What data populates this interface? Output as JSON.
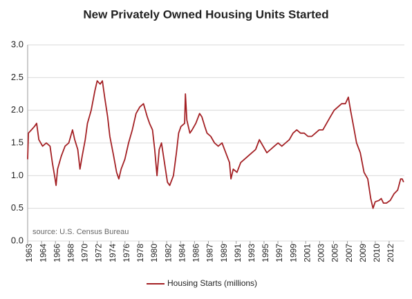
{
  "chart_data": {
    "type": "line",
    "title": "New Privately Owned Housing Units Started",
    "annotation": "source: U.S. Census Bureau",
    "x": [
      1963.0,
      1963.1,
      1963.5,
      1963.9,
      1964.2,
      1964.5,
      1965.0,
      1965.5,
      1966.0,
      1966.3,
      1966.6,
      1966.8,
      1967.0,
      1967.5,
      1968.0,
      1968.5,
      1969.0,
      1969.3,
      1969.7,
      1970.0,
      1970.3,
      1970.7,
      1971.0,
      1971.5,
      1972.0,
      1972.3,
      1972.7,
      1973.0,
      1973.3,
      1973.7,
      1974.0,
      1974.5,
      1974.9,
      1975.2,
      1975.5,
      1976.0,
      1976.5,
      1977.0,
      1977.5,
      1978.0,
      1978.5,
      1979.0,
      1979.3,
      1979.7,
      1980.0,
      1980.3,
      1980.6,
      1980.9,
      1981.3,
      1981.7,
      1982.0,
      1982.5,
      1982.9,
      1983.2,
      1983.5,
      1984.0,
      1984.1,
      1984.3,
      1984.7,
      1985.0,
      1985.5,
      1986.0,
      1986.3,
      1986.7,
      1987.0,
      1987.5,
      1988.0,
      1988.5,
      1989.0,
      1989.5,
      1990.0,
      1990.2,
      1990.5,
      1991.0,
      1991.5,
      1992.0,
      1992.5,
      1993.0,
      1993.5,
      1994.0,
      1994.5,
      1995.0,
      1995.5,
      1996.0,
      1996.5,
      1997.0,
      1997.5,
      1998.0,
      1998.5,
      1999.0,
      1999.5,
      2000.0,
      2000.5,
      2001.0,
      2001.5,
      2002.0,
      2002.5,
      2003.0,
      2003.5,
      2004.0,
      2004.5,
      2005.0,
      2005.5,
      2005.9,
      2006.2,
      2006.6,
      2007.0,
      2007.5,
      2008.0,
      2008.5,
      2008.9,
      2009.2,
      2009.5,
      2010.0,
      2010.3,
      2010.6,
      2011.0,
      2011.5,
      2012.0,
      2012.5,
      2012.9,
      2013.1,
      2013.3
    ],
    "series": [
      {
        "name": "Housing Starts (millions)",
        "color": "#a31f23",
        "values": [
          1.25,
          1.65,
          1.7,
          1.75,
          1.8,
          1.55,
          1.45,
          1.5,
          1.45,
          1.2,
          1.0,
          0.85,
          1.1,
          1.3,
          1.45,
          1.5,
          1.7,
          1.55,
          1.4,
          1.1,
          1.3,
          1.55,
          1.8,
          2.0,
          2.3,
          2.45,
          2.4,
          2.45,
          2.2,
          1.9,
          1.6,
          1.3,
          1.05,
          0.95,
          1.1,
          1.25,
          1.5,
          1.7,
          1.95,
          2.05,
          2.1,
          1.9,
          1.8,
          1.7,
          1.4,
          1.0,
          1.4,
          1.5,
          1.2,
          0.9,
          0.85,
          1.0,
          1.35,
          1.65,
          1.75,
          1.8,
          2.25,
          1.85,
          1.65,
          1.7,
          1.8,
          1.95,
          1.9,
          1.75,
          1.65,
          1.6,
          1.5,
          1.45,
          1.5,
          1.35,
          1.2,
          0.95,
          1.1,
          1.05,
          1.2,
          1.25,
          1.3,
          1.35,
          1.4,
          1.55,
          1.45,
          1.35,
          1.4,
          1.45,
          1.5,
          1.45,
          1.5,
          1.55,
          1.65,
          1.7,
          1.65,
          1.65,
          1.6,
          1.6,
          1.65,
          1.7,
          1.7,
          1.8,
          1.9,
          2.0,
          2.05,
          2.1,
          2.1,
          2.2,
          2.0,
          1.75,
          1.5,
          1.35,
          1.05,
          0.95,
          0.65,
          0.5,
          0.6,
          0.62,
          0.65,
          0.58,
          0.58,
          0.62,
          0.72,
          0.78,
          0.95,
          0.95,
          0.9
        ]
      }
    ],
    "xlim": [
      1963.0,
      2013.4
    ],
    "xticks": [
      {
        "value": 1963.0,
        "label": "1963"
      },
      {
        "value": 1964.86,
        "label": "1964"
      },
      {
        "value": 1966.72,
        "label": "1966"
      },
      {
        "value": 1968.58,
        "label": "1968"
      },
      {
        "value": 1970.44,
        "label": "1970"
      },
      {
        "value": 1972.3,
        "label": "1972"
      },
      {
        "value": 1974.16,
        "label": "1974"
      },
      {
        "value": 1976.02,
        "label": "1976"
      },
      {
        "value": 1977.88,
        "label": "1978"
      },
      {
        "value": 1979.74,
        "label": "1980"
      },
      {
        "value": 1981.6,
        "label": "1982"
      },
      {
        "value": 1983.46,
        "label": "1984"
      },
      {
        "value": 1985.32,
        "label": "1986"
      },
      {
        "value": 1987.18,
        "label": "1987"
      },
      {
        "value": 1989.04,
        "label": "1989"
      },
      {
        "value": 1990.9,
        "label": "1991"
      },
      {
        "value": 1992.76,
        "label": "1993"
      },
      {
        "value": 1994.62,
        "label": "1995"
      },
      {
        "value": 1996.48,
        "label": "1997"
      },
      {
        "value": 1998.34,
        "label": "1999"
      },
      {
        "value": 2000.2,
        "label": "2001"
      },
      {
        "value": 2002.06,
        "label": "2003"
      },
      {
        "value": 2003.92,
        "label": "2005"
      },
      {
        "value": 2005.78,
        "label": "2007"
      },
      {
        "value": 2007.64,
        "label": "2009"
      },
      {
        "value": 2009.5,
        "label": "2010"
      },
      {
        "value": 2011.36,
        "label": "2012"
      }
    ],
    "ylim": [
      0,
      3
    ],
    "yticks": [
      {
        "value": 0,
        "label": "0.0"
      },
      {
        "value": 0.5,
        "label": "0.5"
      },
      {
        "value": 1,
        "label": "1.0"
      },
      {
        "value": 1.5,
        "label": "1.5"
      },
      {
        "value": 2,
        "label": "2.0"
      },
      {
        "value": 2.5,
        "label": "2.5"
      },
      {
        "value": 3,
        "label": "3.0"
      }
    ],
    "grid": true,
    "legend": "bottom"
  }
}
